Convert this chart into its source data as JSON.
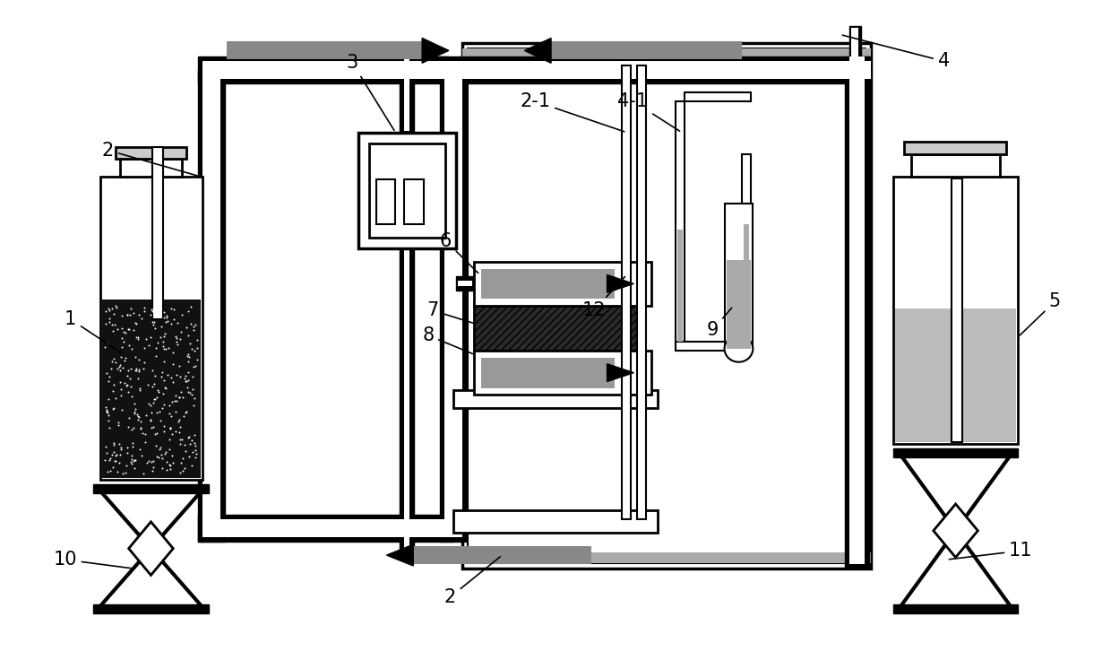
{
  "bg_color": "#ffffff",
  "line_color": "#000000",
  "fig_width": 12.4,
  "fig_height": 7.36,
  "dpi": 100,
  "pipe_lw": 6,
  "thin_lw": 2.0,
  "label_fs": 15
}
